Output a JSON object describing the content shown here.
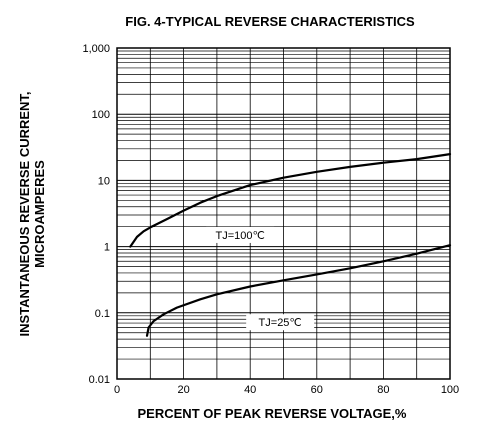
{
  "chart_data": {
    "type": "line",
    "title": "FIG. 4-TYPICAL REVERSE CHARACTERISTICS",
    "xlabel": "PERCENT OF PEAK REVERSE VOLTAGE,%",
    "ylabel_line1": "INSTANTANEOUS REVERSE CURRENT,",
    "ylabel_line2": "MICROAMPERES",
    "xscale": "linear",
    "yscale": "log",
    "xlim": [
      0,
      100
    ],
    "ylim": [
      0.01,
      1000
    ],
    "grid": true,
    "x_ticks": [
      "0",
      "20",
      "40",
      "60",
      "80",
      "100"
    ],
    "y_ticks": [
      "0.01",
      "0.1",
      "1",
      "10",
      "100",
      "1,000"
    ],
    "series": [
      {
        "name": "TJ=100℃",
        "x": [
          4,
          6,
          8,
          10,
          15,
          20,
          25,
          30,
          40,
          50,
          60,
          70,
          80,
          90,
          100
        ],
        "y": [
          1.0,
          1.4,
          1.7,
          1.95,
          2.6,
          3.5,
          4.6,
          5.8,
          8.5,
          11,
          13.5,
          16,
          18.5,
          21,
          25
        ]
      },
      {
        "name": "TJ=25℃",
        "x": [
          9,
          9.5,
          11,
          14,
          18,
          25,
          30,
          40,
          50,
          60,
          70,
          80,
          90,
          100
        ],
        "y": [
          0.045,
          0.06,
          0.075,
          0.095,
          0.12,
          0.16,
          0.19,
          0.25,
          0.31,
          0.38,
          0.47,
          0.6,
          0.78,
          1.05
        ]
      }
    ]
  }
}
